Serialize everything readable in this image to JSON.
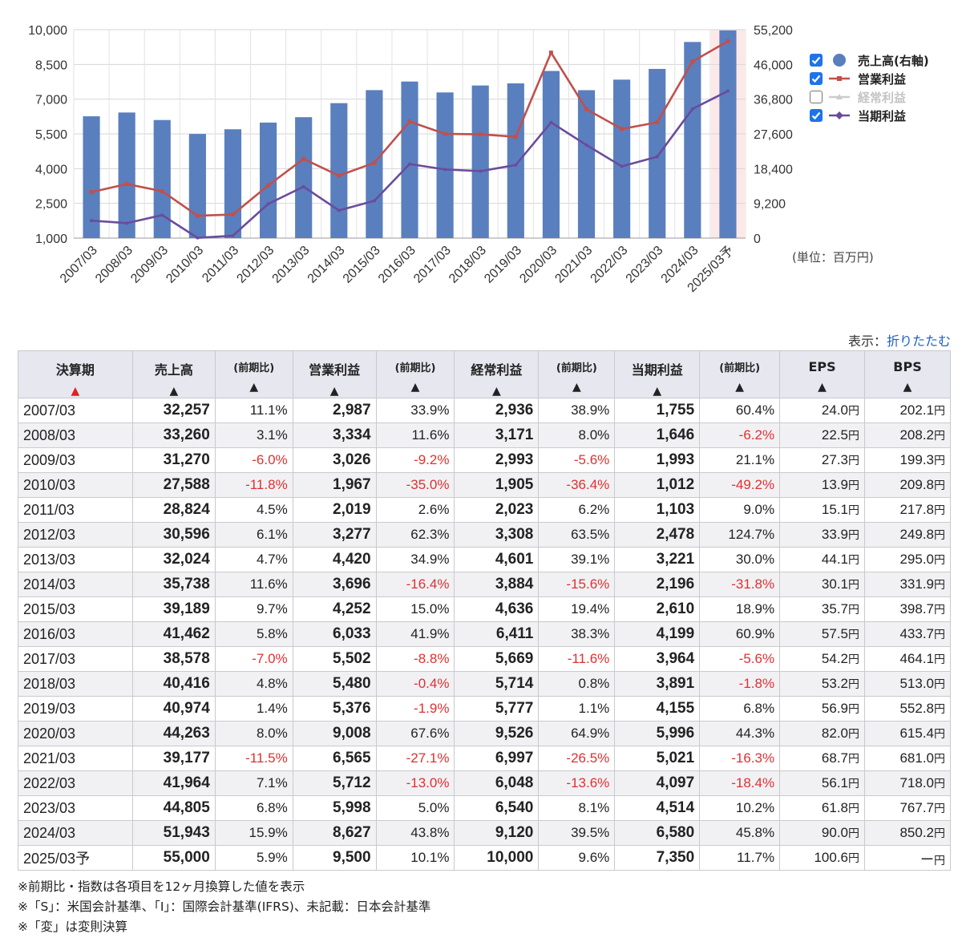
{
  "chart_data": {
    "type": "bar",
    "categories": [
      "2007/03",
      "2008/03",
      "2009/03",
      "2010/03",
      "2011/03",
      "2012/03",
      "2013/03",
      "2014/03",
      "2015/03",
      "2016/03",
      "2017/03",
      "2018/03",
      "2019/03",
      "2020/03",
      "2021/03",
      "2022/03",
      "2023/03",
      "2024/03",
      "2025/03予"
    ],
    "left_axis": {
      "min": 1000,
      "max": 10000,
      "ticks": [
        "1,000",
        "2,500",
        "4,000",
        "5,500",
        "7,000",
        "8,500",
        "10,000"
      ]
    },
    "right_axis": {
      "min": 0,
      "max": 55200,
      "ticks": [
        "0",
        "9,200",
        "18,400",
        "27,600",
        "36,800",
        "46,000",
        "55,200"
      ]
    },
    "series": [
      {
        "name": "売上高(右軸)",
        "type": "bar",
        "axis": "right",
        "color": "#5a7fbe",
        "checked": true,
        "values": [
          32257,
          33260,
          31270,
          27588,
          28824,
          30596,
          32024,
          35738,
          39189,
          41462,
          38578,
          40416,
          40974,
          44263,
          39177,
          41964,
          44805,
          51943,
          55000
        ]
      },
      {
        "name": "営業利益",
        "type": "line",
        "axis": "left",
        "color": "#c0504d",
        "checked": true,
        "values": [
          2987,
          3334,
          3026,
          1967,
          2019,
          3277,
          4420,
          3696,
          4252,
          6033,
          5502,
          5480,
          5376,
          9008,
          6565,
          5712,
          5998,
          8627,
          9500
        ]
      },
      {
        "name": "経常利益",
        "type": "line",
        "axis": "left",
        "color": "#bbbbbb",
        "checked": false,
        "values": [
          2936,
          3171,
          2993,
          1905,
          2023,
          3308,
          4601,
          3884,
          4636,
          6411,
          5669,
          5714,
          5777,
          9526,
          6997,
          6048,
          6540,
          9120,
          10000
        ]
      },
      {
        "name": "当期利益",
        "type": "line",
        "axis": "left",
        "color": "#6a4c9c",
        "checked": true,
        "values": [
          1755,
          1646,
          1993,
          1012,
          1103,
          2478,
          3221,
          2196,
          2610,
          4199,
          3964,
          3891,
          4155,
          5996,
          5021,
          4097,
          4514,
          6580,
          7350
        ]
      }
    ],
    "highlight_category": "2025/03予",
    "grid": true,
    "legend_position": "right"
  },
  "unit_label": "(単位：百万円)",
  "toggle": {
    "prefix": "表示：",
    "link": "折りたたむ"
  },
  "table": {
    "headers": [
      {
        "label": "決算期",
        "arrow": "▲"
      },
      {
        "label": "売上高",
        "arrow": "▲"
      },
      {
        "label": "(前期比)",
        "arrow": "▲"
      },
      {
        "label": "営業利益",
        "arrow": "▲"
      },
      {
        "label": "(前期比)",
        "arrow": "▲"
      },
      {
        "label": "経常利益",
        "arrow": "▲"
      },
      {
        "label": "(前期比)",
        "arrow": "▲"
      },
      {
        "label": "当期利益",
        "arrow": "▲"
      },
      {
        "label": "(前期比)",
        "arrow": "▲"
      },
      {
        "label": "EPS",
        "arrow": "▲"
      },
      {
        "label": "BPS",
        "arrow": "▲"
      }
    ],
    "rows": [
      [
        "2007/03",
        "32,257",
        "11.1%",
        "2,987",
        "33.9%",
        "2,936",
        "38.9%",
        "1,755",
        "60.4%",
        "24.0",
        "202.1"
      ],
      [
        "2008/03",
        "33,260",
        "3.1%",
        "3,334",
        "11.6%",
        "3,171",
        "8.0%",
        "1,646",
        "-6.2%",
        "22.5",
        "208.2"
      ],
      [
        "2009/03",
        "31,270",
        "-6.0%",
        "3,026",
        "-9.2%",
        "2,993",
        "-5.6%",
        "1,993",
        "21.1%",
        "27.3",
        "199.3"
      ],
      [
        "2010/03",
        "27,588",
        "-11.8%",
        "1,967",
        "-35.0%",
        "1,905",
        "-36.4%",
        "1,012",
        "-49.2%",
        "13.9",
        "209.8"
      ],
      [
        "2011/03",
        "28,824",
        "4.5%",
        "2,019",
        "2.6%",
        "2,023",
        "6.2%",
        "1,103",
        "9.0%",
        "15.1",
        "217.8"
      ],
      [
        "2012/03",
        "30,596",
        "6.1%",
        "3,277",
        "62.3%",
        "3,308",
        "63.5%",
        "2,478",
        "124.7%",
        "33.9",
        "249.8"
      ],
      [
        "2013/03",
        "32,024",
        "4.7%",
        "4,420",
        "34.9%",
        "4,601",
        "39.1%",
        "3,221",
        "30.0%",
        "44.1",
        "295.0"
      ],
      [
        "2014/03",
        "35,738",
        "11.6%",
        "3,696",
        "-16.4%",
        "3,884",
        "-15.6%",
        "2,196",
        "-31.8%",
        "30.1",
        "331.9"
      ],
      [
        "2015/03",
        "39,189",
        "9.7%",
        "4,252",
        "15.0%",
        "4,636",
        "19.4%",
        "2,610",
        "18.9%",
        "35.7",
        "398.7"
      ],
      [
        "2016/03",
        "41,462",
        "5.8%",
        "6,033",
        "41.9%",
        "6,411",
        "38.3%",
        "4,199",
        "60.9%",
        "57.5",
        "433.7"
      ],
      [
        "2017/03",
        "38,578",
        "-7.0%",
        "5,502",
        "-8.8%",
        "5,669",
        "-11.6%",
        "3,964",
        "-5.6%",
        "54.2",
        "464.1"
      ],
      [
        "2018/03",
        "40,416",
        "4.8%",
        "5,480",
        "-0.4%",
        "5,714",
        "0.8%",
        "3,891",
        "-1.8%",
        "53.2",
        "513.0"
      ],
      [
        "2019/03",
        "40,974",
        "1.4%",
        "5,376",
        "-1.9%",
        "5,777",
        "1.1%",
        "4,155",
        "6.8%",
        "56.9",
        "552.8"
      ],
      [
        "2020/03",
        "44,263",
        "8.0%",
        "9,008",
        "67.6%",
        "9,526",
        "64.9%",
        "5,996",
        "44.3%",
        "82.0",
        "615.4"
      ],
      [
        "2021/03",
        "39,177",
        "-11.5%",
        "6,565",
        "-27.1%",
        "6,997",
        "-26.5%",
        "5,021",
        "-16.3%",
        "68.7",
        "681.0"
      ],
      [
        "2022/03",
        "41,964",
        "7.1%",
        "5,712",
        "-13.0%",
        "6,048",
        "-13.6%",
        "4,097",
        "-18.4%",
        "56.1",
        "718.0"
      ],
      [
        "2023/03",
        "44,805",
        "6.8%",
        "5,998",
        "5.0%",
        "6,540",
        "8.1%",
        "4,514",
        "10.2%",
        "61.8",
        "767.7"
      ],
      [
        "2024/03",
        "51,943",
        "15.9%",
        "8,627",
        "43.8%",
        "9,120",
        "39.5%",
        "6,580",
        "45.8%",
        "90.0",
        "850.2"
      ],
      [
        "2025/03予",
        "55,000",
        "5.9%",
        "9,500",
        "10.1%",
        "10,000",
        "9.6%",
        "7,350",
        "11.7%",
        "100.6",
        "ー"
      ]
    ],
    "yen": "円"
  },
  "notes": [
    "※前期比・指数は各項目を12ヶ月換算した値を表示",
    "※「S」：米国会計基準、「I」：国際会計基準(IFRS)、未記載：日本会計基準",
    "※「変」は変則決算"
  ]
}
